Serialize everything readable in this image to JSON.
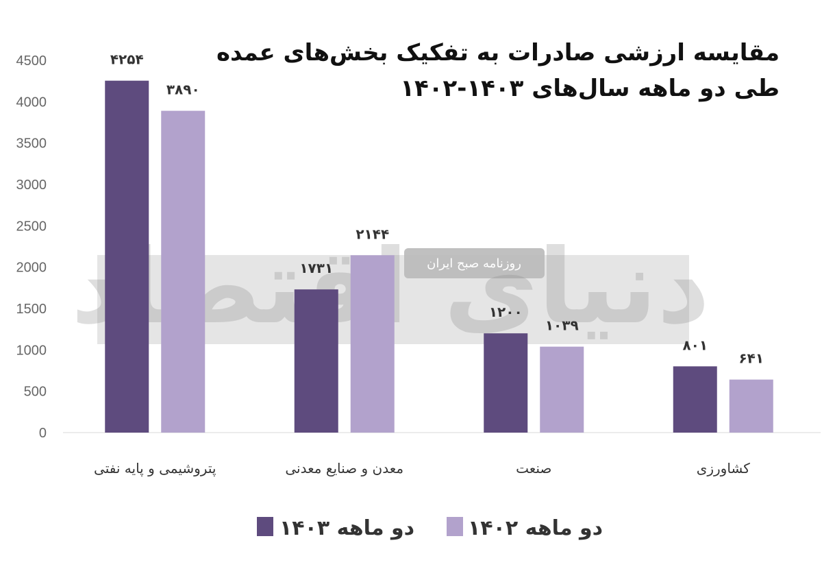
{
  "chart_data": {
    "type": "bar",
    "title": [
      "مقایسه ارزشی صادرات به تفکیک بخش‌های عمده",
      "طی دو ماهه سال‌های ۱۴۰۳-۱۴۰۲"
    ],
    "categories": [
      "پتروشیمی و پایه نفتی",
      "معدن و صنایع معدنی",
      "صنعت",
      "کشاورزی"
    ],
    "series": [
      {
        "name": "دو ماهه ۱۴۰۳",
        "color": "#5e4b7e",
        "values": [
          4254,
          1731,
          1200,
          801
        ],
        "labels": [
          "۴۲۵۴",
          "۱۷۳۱",
          "۱۲۰۰",
          "۸۰۱"
        ]
      },
      {
        "name": "دو ماهه ۱۴۰۲",
        "color": "#b2a2cc",
        "values": [
          3890,
          2144,
          1039,
          641
        ],
        "labels": [
          "۳۸۹۰",
          "۲۱۴۴",
          "۱۰۳۹",
          "۶۴۱"
        ]
      }
    ],
    "yticks": [
      0,
      500,
      1000,
      1500,
      2000,
      2500,
      3000,
      3500,
      4000,
      4500
    ],
    "ylim": [
      0,
      4500
    ],
    "grid": false,
    "legend_position": "bottom"
  },
  "watermark": {
    "logo_text": "دنیای اقتصاد",
    "badge_text": "روزنامه صبح ایران"
  }
}
